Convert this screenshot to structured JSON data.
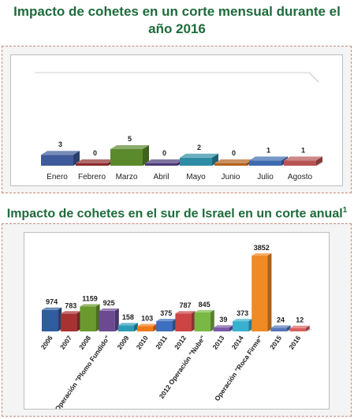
{
  "chart_data": [
    {
      "type": "bar",
      "title": "Impacto de cohetes en un corte mensual durante el año 2016",
      "categories": [
        "Enero",
        "Febrero",
        "Marzo",
        "Abril",
        "Mayo",
        "Junio",
        "Julio",
        "Agosto"
      ],
      "values": [
        3,
        0,
        5,
        0,
        2,
        0,
        1,
        1
      ],
      "colors": [
        "#3e5a9a",
        "#8e2b2b",
        "#5b8a2c",
        "#4a3a78",
        "#2c8ca3",
        "#b5611d",
        "#3d6bb0",
        "#b85454"
      ],
      "ylim": [
        0,
        5
      ]
    },
    {
      "type": "bar",
      "title": "Impacto de cohetes en el sur de Israel en un corte anual",
      "title_sup": "1",
      "categories": [
        "2006",
        "2007",
        "2008",
        "Operación \"Plomo Fundido\"",
        "2009",
        "2010",
        "2011",
        "2012",
        "2012 Operación \"Nube\"",
        "2013",
        "2014",
        "Operación \"Roca Firme\"",
        "2015",
        "2016"
      ],
      "values": [
        974,
        783,
        1159,
        925,
        158,
        103,
        375,
        787,
        845,
        39,
        373,
        3852,
        24,
        12
      ],
      "colors": [
        "#2f5d9e",
        "#a83232",
        "#6a9a2e",
        "#6b4a92",
        "#2c9cb8",
        "#f07a1a",
        "#3d6fc0",
        "#cc4444",
        "#7ab845",
        "#7a5aa8",
        "#38b0d0",
        "#f08a24",
        "#5577bb",
        "#d96060"
      ],
      "ylim": [
        0,
        3852
      ]
    }
  ]
}
